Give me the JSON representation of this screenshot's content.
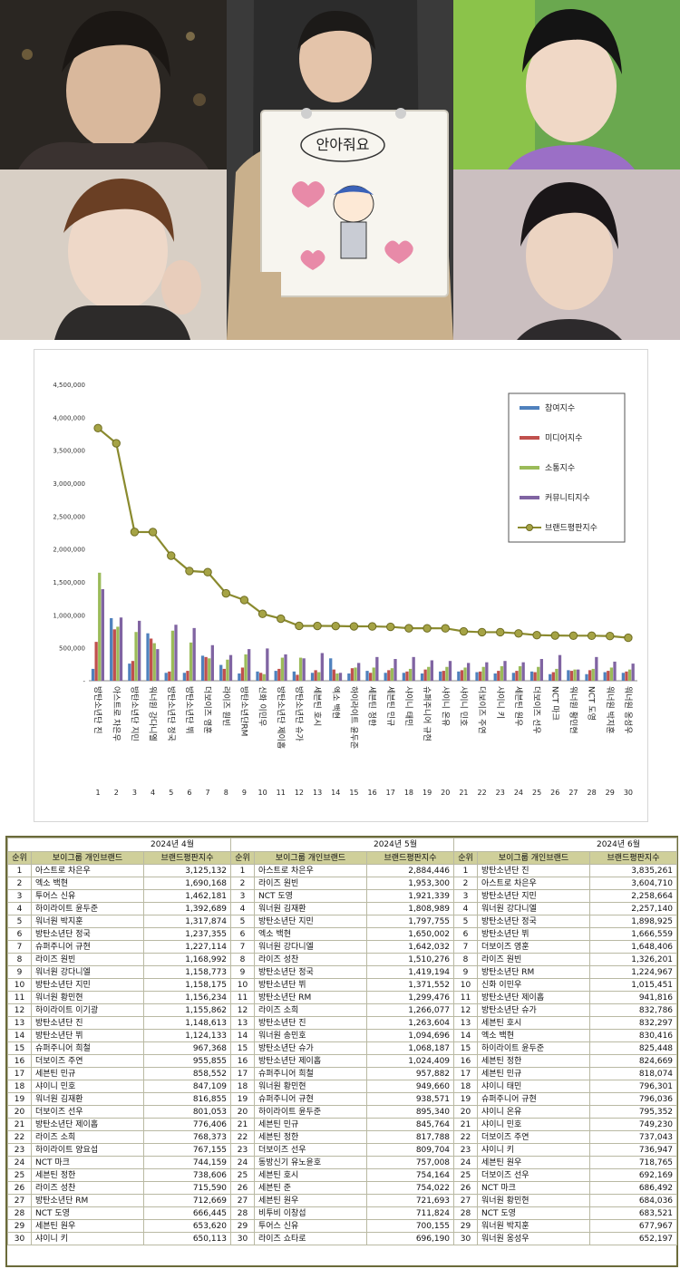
{
  "photo_sign_text": "안아줘요",
  "chart_data": {
    "type": "bar",
    "title": "",
    "xlabel": "",
    "ylabel": "",
    "ylim": [
      0,
      4500000
    ],
    "y_ticks": [
      "4,500,000",
      "4,000,000",
      "3,500,000",
      "3,000,000",
      "2,500,000",
      "2,000,000",
      "1,500,000",
      "1,000,000",
      "500,000",
      "-"
    ],
    "grid": false,
    "legend_position": "top-right",
    "categories": [
      "방탄소년단 진",
      "아스트로 차은우",
      "방탄소년단 지민",
      "워너원 강다니엘",
      "방탄소년단 정국",
      "방탄소년단 뷔",
      "더보이즈 영훈",
      "라이즈 원빈",
      "방탄소년단RM",
      "신화 이민우",
      "방탄소년단 제이홉",
      "방탄소년단 슈가",
      "세븐틴 호시",
      "엑소 백현",
      "하이라이트 윤두준",
      "세븐틴 정한",
      "세븐틴 민규",
      "샤이니 태민",
      "슈퍼주니어 규현",
      "샤이니 온유",
      "샤이니 민호",
      "더보이즈 주연",
      "샤이니 키",
      "세븐틴 원우",
      "더보이즈 선우",
      "NCT 마크",
      "워너원 황민현",
      "NCT 도영",
      "워너원 박지훈",
      "워너원 옹성우"
    ],
    "rank_labels": [
      "1",
      "2",
      "3",
      "4",
      "5",
      "6",
      "7",
      "8",
      "9",
      "10",
      "11",
      "12",
      "13",
      "14",
      "15",
      "16",
      "17",
      "18",
      "19",
      "20",
      "21",
      "22",
      "23",
      "24",
      "25",
      "26",
      "27",
      "28",
      "29",
      "30"
    ],
    "series": [
      {
        "name": "참여지수",
        "kind": "bar",
        "color": "#4f81bd",
        "values": [
          180000,
          950000,
          260000,
          720000,
          120000,
          120000,
          380000,
          240000,
          110000,
          140000,
          150000,
          140000,
          120000,
          340000,
          110000,
          150000,
          120000,
          120000,
          110000,
          140000,
          140000,
          130000,
          110000,
          120000,
          140000,
          100000,
          160000,
          100000,
          130000,
          120000
        ]
      },
      {
        "name": "미디어지수",
        "kind": "bar",
        "color": "#c0504d",
        "values": [
          590000,
          780000,
          300000,
          640000,
          140000,
          150000,
          360000,
          180000,
          200000,
          120000,
          180000,
          90000,
          160000,
          170000,
          190000,
          120000,
          160000,
          140000,
          170000,
          150000,
          160000,
          140000,
          150000,
          150000,
          130000,
          130000,
          150000,
          160000,
          150000,
          140000
        ]
      },
      {
        "name": "소통지수",
        "kind": "bar",
        "color": "#9bbb59",
        "values": [
          1640000,
          820000,
          740000,
          570000,
          760000,
          580000,
          340000,
          320000,
          400000,
          100000,
          350000,
          350000,
          130000,
          110000,
          200000,
          200000,
          190000,
          180000,
          210000,
          210000,
          200000,
          210000,
          220000,
          220000,
          210000,
          180000,
          170000,
          180000,
          200000,
          170000
        ]
      },
      {
        "name": "커뮤니티지수",
        "kind": "bar",
        "color": "#8064a2",
        "values": [
          1390000,
          960000,
          910000,
          480000,
          850000,
          800000,
          540000,
          390000,
          480000,
          490000,
          400000,
          340000,
          420000,
          120000,
          270000,
          360000,
          330000,
          360000,
          310000,
          300000,
          270000,
          280000,
          300000,
          280000,
          330000,
          390000,
          170000,
          360000,
          290000,
          260000
        ]
      },
      {
        "name": "브랜드평판지수",
        "kind": "line",
        "color": "#8a8a2e",
        "values": [
          3835261,
          3604710,
          2258664,
          2257140,
          1898925,
          1666559,
          1648406,
          1326201,
          1224967,
          1015451,
          941816,
          832786,
          832297,
          830416,
          825448,
          824669,
          818074,
          796301,
          796036,
          795352,
          749230,
          737043,
          736947,
          718765,
          692169,
          686492,
          684036,
          683521,
          677967,
          652197
        ]
      }
    ]
  },
  "tables": {
    "header": {
      "rank": "순위",
      "brand": "보이그룹 개인브랜드",
      "index": "브랜드평판지수"
    },
    "months": [
      {
        "title": "2024년 4월",
        "rows": [
          [
            "1",
            "아스트로 차은우",
            "3,125,132"
          ],
          [
            "2",
            "엑소 백현",
            "1,690,168"
          ],
          [
            "3",
            "투어스 신유",
            "1,462,181"
          ],
          [
            "4",
            "하이라이트 윤두준",
            "1,392,689"
          ],
          [
            "5",
            "워너원 박지훈",
            "1,317,874"
          ],
          [
            "6",
            "방탄소년단 정국",
            "1,237,355"
          ],
          [
            "7",
            "슈퍼주니어 규현",
            "1,227,114"
          ],
          [
            "8",
            "라이즈 원빈",
            "1,168,992"
          ],
          [
            "9",
            "워너원 강다니엘",
            "1,158,773"
          ],
          [
            "10",
            "방탄소년단 지민",
            "1,158,175"
          ],
          [
            "11",
            "워너원 황민현",
            "1,156,234"
          ],
          [
            "12",
            "하이라이트 이기광",
            "1,155,862"
          ],
          [
            "13",
            "방탄소년단 진",
            "1,148,613"
          ],
          [
            "14",
            "방탄소년단 뷔",
            "1,124,133"
          ],
          [
            "15",
            "슈퍼주니어 희철",
            "967,368"
          ],
          [
            "16",
            "더보이즈 주연",
            "955,855"
          ],
          [
            "17",
            "세븐틴 민규",
            "858,552"
          ],
          [
            "18",
            "샤이니 민호",
            "847,109"
          ],
          [
            "19",
            "워너원 김재환",
            "816,855"
          ],
          [
            "20",
            "더보이즈 선우",
            "801,053"
          ],
          [
            "21",
            "방탄소년단 제이홉",
            "776,406"
          ],
          [
            "22",
            "라이즈 소희",
            "768,373"
          ],
          [
            "23",
            "하이라이트 양요섭",
            "767,155"
          ],
          [
            "24",
            "NCT 마크",
            "744,159"
          ],
          [
            "25",
            "세븐틴 정한",
            "738,606"
          ],
          [
            "26",
            "라이즈 성찬",
            "715,590"
          ],
          [
            "27",
            "방탄소년단 RM",
            "712,669"
          ],
          [
            "28",
            "NCT 도영",
            "666,445"
          ],
          [
            "29",
            "세븐틴 원우",
            "653,620"
          ],
          [
            "30",
            "샤이니 키",
            "650,113"
          ]
        ]
      },
      {
        "title": "2024년 5월",
        "rows": [
          [
            "1",
            "아스트로 차은우",
            "2,884,446"
          ],
          [
            "2",
            "라이즈 원빈",
            "1,953,300"
          ],
          [
            "3",
            "NCT 도영",
            "1,921,339"
          ],
          [
            "4",
            "워너원 김재환",
            "1,808,989"
          ],
          [
            "5",
            "방탄소년단 지민",
            "1,797,755"
          ],
          [
            "6",
            "엑소 백현",
            "1,650,002"
          ],
          [
            "7",
            "워너원 강다니엘",
            "1,642,032"
          ],
          [
            "8",
            "라이즈 성찬",
            "1,510,276"
          ],
          [
            "9",
            "방탄소년단 정국",
            "1,419,194"
          ],
          [
            "10",
            "방탄소년단 뷔",
            "1,371,552"
          ],
          [
            "11",
            "방탄소년단 RM",
            "1,299,476"
          ],
          [
            "12",
            "라이즈 소희",
            "1,266,077"
          ],
          [
            "13",
            "방탄소년단 진",
            "1,263,604"
          ],
          [
            "14",
            "워너원 송민호",
            "1,094,696"
          ],
          [
            "15",
            "방탄소년단 슈가",
            "1,068,187"
          ],
          [
            "16",
            "방탄소년단 제이홉",
            "1,024,409"
          ],
          [
            "17",
            "슈퍼주니어 희철",
            "957,882"
          ],
          [
            "18",
            "워너원 황민현",
            "949,660"
          ],
          [
            "19",
            "슈퍼주니어 규현",
            "938,571"
          ],
          [
            "20",
            "하이라이트 윤두준",
            "895,340"
          ],
          [
            "21",
            "세븐틴 민규",
            "845,764"
          ],
          [
            "22",
            "세븐틴 정한",
            "817,788"
          ],
          [
            "23",
            "더보이즈 선우",
            "809,704"
          ],
          [
            "24",
            "동방신기 유노윤호",
            "757,008"
          ],
          [
            "25",
            "세븐틴 호시",
            "754,164"
          ],
          [
            "26",
            "세븐틴 준",
            "754,022"
          ],
          [
            "27",
            "세븐틴 원우",
            "721,693"
          ],
          [
            "28",
            "비투비 이창섭",
            "711,824"
          ],
          [
            "29",
            "투어스 신유",
            "700,155"
          ],
          [
            "30",
            "라이즈 쇼타로",
            "696,190"
          ]
        ]
      },
      {
        "title": "2024년 6월",
        "rows": [
          [
            "1",
            "방탄소년단 진",
            "3,835,261"
          ],
          [
            "2",
            "아스트로 차은우",
            "3,604,710"
          ],
          [
            "3",
            "방탄소년단 지민",
            "2,258,664"
          ],
          [
            "4",
            "워너원 강다니엘",
            "2,257,140"
          ],
          [
            "5",
            "방탄소년단 정국",
            "1,898,925"
          ],
          [
            "6",
            "방탄소년단 뷔",
            "1,666,559"
          ],
          [
            "7",
            "더보이즈 영훈",
            "1,648,406"
          ],
          [
            "8",
            "라이즈 원빈",
            "1,326,201"
          ],
          [
            "9",
            "방탄소년단 RM",
            "1,224,967"
          ],
          [
            "10",
            "신화 이민우",
            "1,015,451"
          ],
          [
            "11",
            "방탄소년단 제이홉",
            "941,816"
          ],
          [
            "12",
            "방탄소년단 슈가",
            "832,786"
          ],
          [
            "13",
            "세븐틴 호시",
            "832,297"
          ],
          [
            "14",
            "엑소 백현",
            "830,416"
          ],
          [
            "15",
            "하이라이트 윤두준",
            "825,448"
          ],
          [
            "16",
            "세븐틴 정한",
            "824,669"
          ],
          [
            "17",
            "세븐틴 민규",
            "818,074"
          ],
          [
            "18",
            "샤이니 태민",
            "796,301"
          ],
          [
            "19",
            "슈퍼주니어 규현",
            "796,036"
          ],
          [
            "20",
            "샤이니 온유",
            "795,352"
          ],
          [
            "21",
            "샤이니 민호",
            "749,230"
          ],
          [
            "22",
            "더보이즈 주연",
            "737,043"
          ],
          [
            "23",
            "샤이니 키",
            "736,947"
          ],
          [
            "24",
            "세븐틴 원우",
            "718,765"
          ],
          [
            "25",
            "더보이즈 선우",
            "692,169"
          ],
          [
            "26",
            "NCT 마크",
            "686,492"
          ],
          [
            "27",
            "워너원 황민현",
            "684,036"
          ],
          [
            "28",
            "NCT 도영",
            "683,521"
          ],
          [
            "29",
            "워너원 박지훈",
            "677,967"
          ],
          [
            "30",
            "워너원 옹성우",
            "652,197"
          ]
        ]
      }
    ]
  }
}
